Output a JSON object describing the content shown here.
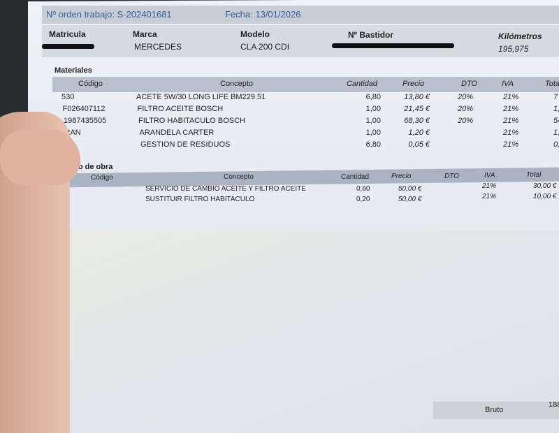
{
  "header": {
    "order_label": "Nº orden trabajo: S-202401681",
    "date_label": "Fecha: 13/01/2026"
  },
  "vehicle": {
    "matricula_label": "Matricula",
    "marca_label": "Marca",
    "marca": "MERCEDES",
    "modelo_label": "Modelo",
    "modelo": "CLA 200 CDI",
    "bastidor_label": "Nº Bastidor",
    "km_label": "Kilómetros",
    "km": "195,975"
  },
  "materiales": {
    "title": "Materiales",
    "columns": [
      "Código",
      "Concepto",
      "Cantidad",
      "Precio",
      "DTO",
      "IVA",
      "Tota"
    ],
    "rows": [
      [
        "530",
        "ACETE 5W/30 LONG LIFE BM229.51",
        "6,80",
        "13,80 €",
        "20%",
        "21%",
        "7"
      ],
      [
        "F026407112",
        "FILTRO ACEITE BOSCH",
        "1,00",
        "21,45 €",
        "20%",
        "21%",
        "1,"
      ],
      [
        "1987435505",
        "FILTRO HABITACULO BOSCH",
        "1,00",
        "68,30 €",
        "20%",
        "21%",
        "54"
      ],
      [
        "RAN",
        "ARANDELA CARTER",
        "1,00",
        "1,20 €",
        "",
        "21%",
        "1,"
      ],
      [
        "S",
        "GESTION DE RESIDUOS",
        "6,80",
        "0,05 €",
        "",
        "21%",
        "0,3"
      ]
    ]
  },
  "mano_obra": {
    "title": "lano de obra",
    "columns": [
      "Código",
      "Concepto",
      "Cantidad",
      "Precio",
      "DTO",
      "IVA",
      "Total"
    ],
    "rows": [
      [
        "",
        "SERVICIO DE CAMBIO ACEITE Y FILTRO ACEITE",
        "0,60",
        "50,00 €",
        "",
        "21%",
        "30,00 €"
      ],
      [
        "",
        "SUSTITUIR FILTRO HABITACULO",
        "0,20",
        "50,00 €",
        "",
        "21%",
        "10,00 €"
      ]
    ]
  },
  "footer": {
    "bruto_label": "Bruto",
    "bruto_value": "188"
  }
}
